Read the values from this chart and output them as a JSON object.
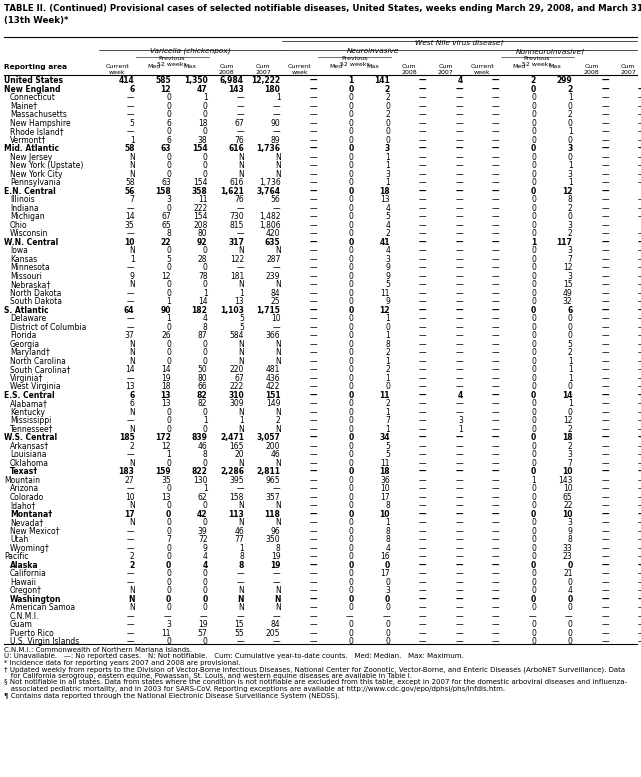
{
  "title": "TABLE II. (Continued) Provisional cases of selected notifiable diseases, United States, weeks ending March 29, 2008, and March 31, 2007\n(13th Week)*",
  "wnv_label": "West Nile virus disease†",
  "rows": [
    [
      "United States",
      "414",
      "585",
      "1,350",
      "6,984",
      "12,222",
      "—",
      "1",
      "141",
      "—",
      "4",
      "—",
      "2",
      "299",
      "—",
      "1"
    ],
    [
      "New England",
      "6",
      "12",
      "47",
      "143",
      "180",
      "—",
      "0",
      "2",
      "—",
      "—",
      "—",
      "0",
      "2",
      "—",
      "—"
    ],
    [
      "Connecticut",
      "—",
      "0",
      "1",
      "—",
      "1",
      "—",
      "0",
      "2",
      "—",
      "—",
      "—",
      "0",
      "1",
      "—",
      "—"
    ],
    [
      "Maine†",
      "—",
      "0",
      "0",
      "—",
      "—",
      "—",
      "0",
      "0",
      "—",
      "—",
      "—",
      "0",
      "0",
      "—",
      "—"
    ],
    [
      "Massachusetts",
      "—",
      "0",
      "0",
      "—",
      "—",
      "—",
      "0",
      "2",
      "—",
      "—",
      "—",
      "0",
      "2",
      "—",
      "—"
    ],
    [
      "New Hampshire",
      "5",
      "6",
      "18",
      "67",
      "90",
      "—",
      "0",
      "0",
      "—",
      "—",
      "—",
      "0",
      "0",
      "—",
      "—"
    ],
    [
      "Rhode Island†",
      "—",
      "0",
      "0",
      "—",
      "—",
      "—",
      "0",
      "0",
      "—",
      "—",
      "—",
      "0",
      "1",
      "—",
      "—"
    ],
    [
      "Vermont†",
      "1",
      "6",
      "38",
      "76",
      "89",
      "—",
      "0",
      "0",
      "—",
      "—",
      "—",
      "0",
      "0",
      "—",
      "—"
    ],
    [
      "Mid. Atlantic",
      "58",
      "63",
      "154",
      "616",
      "1,736",
      "—",
      "0",
      "3",
      "—",
      "—",
      "—",
      "0",
      "3",
      "—",
      "—"
    ],
    [
      "New Jersey",
      "N",
      "0",
      "0",
      "N",
      "N",
      "—",
      "0",
      "1",
      "—",
      "—",
      "—",
      "0",
      "0",
      "—",
      "—"
    ],
    [
      "New York (Upstate)",
      "N",
      "0",
      "0",
      "N",
      "N",
      "—",
      "0",
      "1",
      "—",
      "—",
      "—",
      "0",
      "1",
      "—",
      "—"
    ],
    [
      "New York City",
      "N",
      "0",
      "0",
      "N",
      "N",
      "—",
      "0",
      "3",
      "—",
      "—",
      "—",
      "0",
      "3",
      "—",
      "—"
    ],
    [
      "Pennsylvania",
      "58",
      "63",
      "154",
      "616",
      "1,736",
      "—",
      "0",
      "1",
      "—",
      "—",
      "—",
      "0",
      "1",
      "—",
      "—"
    ],
    [
      "E.N. Central",
      "56",
      "158",
      "358",
      "1,621",
      "3,764",
      "—",
      "0",
      "18",
      "—",
      "—",
      "—",
      "0",
      "12",
      "—",
      "1"
    ],
    [
      "Illinois",
      "7",
      "3",
      "11",
      "76",
      "56",
      "—",
      "0",
      "13",
      "—",
      "—",
      "—",
      "0",
      "8",
      "—",
      "—"
    ],
    [
      "Indiana",
      "—",
      "0",
      "222",
      "—",
      "—",
      "—",
      "0",
      "4",
      "—",
      "—",
      "—",
      "0",
      "2",
      "—",
      "—"
    ],
    [
      "Michigan",
      "14",
      "67",
      "154",
      "730",
      "1,482",
      "—",
      "0",
      "5",
      "—",
      "—",
      "—",
      "0",
      "0",
      "—",
      "—"
    ],
    [
      "Ohio",
      "35",
      "65",
      "208",
      "815",
      "1,806",
      "—",
      "0",
      "4",
      "—",
      "—",
      "—",
      "0",
      "3",
      "—",
      "1"
    ],
    [
      "Wisconsin",
      "—",
      "8",
      "80",
      "—",
      "420",
      "—",
      "0",
      "2",
      "—",
      "—",
      "—",
      "0",
      "2",
      "—",
      "—"
    ],
    [
      "W.N. Central",
      "10",
      "22",
      "92",
      "317",
      "635",
      "—",
      "0",
      "41",
      "—",
      "—",
      "—",
      "1",
      "117",
      "—",
      "—"
    ],
    [
      "Iowa",
      "N",
      "0",
      "0",
      "N",
      "N",
      "—",
      "0",
      "4",
      "—",
      "—",
      "—",
      "0",
      "3",
      "—",
      "—"
    ],
    [
      "Kansas",
      "1",
      "5",
      "28",
      "122",
      "287",
      "—",
      "0",
      "3",
      "—",
      "—",
      "—",
      "0",
      "7",
      "—",
      "—"
    ],
    [
      "Minnesota",
      "—",
      "0",
      "0",
      "—",
      "—",
      "—",
      "0",
      "9",
      "—",
      "—",
      "—",
      "0",
      "12",
      "—",
      "—"
    ],
    [
      "Missouri",
      "9",
      "12",
      "78",
      "181",
      "239",
      "—",
      "0",
      "9",
      "—",
      "—",
      "—",
      "0",
      "3",
      "—",
      "—"
    ],
    [
      "Nebraska†",
      "N",
      "0",
      "0",
      "N",
      "N",
      "—",
      "0",
      "5",
      "—",
      "—",
      "—",
      "0",
      "15",
      "—",
      "—"
    ],
    [
      "North Dakota",
      "—",
      "0",
      "1",
      "1",
      "84",
      "—",
      "0",
      "11",
      "—",
      "—",
      "—",
      "0",
      "49",
      "—",
      "—"
    ],
    [
      "South Dakota",
      "—",
      "1",
      "14",
      "13",
      "25",
      "—",
      "0",
      "9",
      "—",
      "—",
      "—",
      "0",
      "32",
      "—",
      "—"
    ],
    [
      "S. Atlantic",
      "64",
      "90",
      "182",
      "1,103",
      "1,715",
      "—",
      "0",
      "12",
      "—",
      "—",
      "—",
      "0",
      "6",
      "—",
      "—"
    ],
    [
      "Delaware",
      "—",
      "1",
      "4",
      "5",
      "10",
      "—",
      "0",
      "1",
      "—",
      "—",
      "—",
      "0",
      "0",
      "—",
      "—"
    ],
    [
      "District of Columbia",
      "—",
      "0",
      "8",
      "5",
      "—",
      "—",
      "0",
      "0",
      "—",
      "—",
      "—",
      "0",
      "0",
      "—",
      "—"
    ],
    [
      "Florida",
      "37",
      "26",
      "87",
      "584",
      "366",
      "—",
      "0",
      "1",
      "—",
      "—",
      "—",
      "0",
      "0",
      "—",
      "—"
    ],
    [
      "Georgia",
      "N",
      "0",
      "0",
      "N",
      "N",
      "—",
      "0",
      "8",
      "—",
      "—",
      "—",
      "0",
      "5",
      "—",
      "—"
    ],
    [
      "Maryland†",
      "N",
      "0",
      "0",
      "N",
      "N",
      "—",
      "0",
      "2",
      "—",
      "—",
      "—",
      "0",
      "2",
      "—",
      "—"
    ],
    [
      "North Carolina",
      "N",
      "0",
      "0",
      "N",
      "N",
      "—",
      "0",
      "1",
      "—",
      "—",
      "—",
      "0",
      "1",
      "—",
      "—"
    ],
    [
      "South Carolina†",
      "14",
      "14",
      "50",
      "220",
      "481",
      "—",
      "0",
      "2",
      "—",
      "—",
      "—",
      "0",
      "1",
      "—",
      "—"
    ],
    [
      "Virginia†",
      "—",
      "19",
      "80",
      "67",
      "436",
      "—",
      "0",
      "1",
      "—",
      "—",
      "—",
      "0",
      "1",
      "—",
      "—"
    ],
    [
      "West Virginia",
      "13",
      "18",
      "66",
      "222",
      "422",
      "—",
      "0",
      "0",
      "—",
      "—",
      "—",
      "0",
      "0",
      "—",
      "—"
    ],
    [
      "E.S. Central",
      "6",
      "13",
      "82",
      "310",
      "151",
      "—",
      "0",
      "11",
      "—",
      "4",
      "—",
      "0",
      "14",
      "—",
      "—"
    ],
    [
      "Alabama†",
      "6",
      "13",
      "82",
      "309",
      "149",
      "—",
      "0",
      "2",
      "—",
      "—",
      "—",
      "0",
      "1",
      "—",
      "—"
    ],
    [
      "Kentucky",
      "N",
      "0",
      "0",
      "N",
      "N",
      "—",
      "0",
      "1",
      "—",
      "—",
      "—",
      "0",
      "0",
      "—",
      "—"
    ],
    [
      "Mississippi",
      "—",
      "0",
      "1",
      "1",
      "2",
      "—",
      "0",
      "7",
      "—",
      "3",
      "—",
      "0",
      "12",
      "—",
      "—"
    ],
    [
      "Tennessee†",
      "N",
      "0",
      "0",
      "N",
      "N",
      "—",
      "0",
      "1",
      "—",
      "1",
      "—",
      "0",
      "2",
      "—",
      "—"
    ],
    [
      "W.S. Central",
      "185",
      "172",
      "839",
      "2,471",
      "3,057",
      "—",
      "0",
      "34",
      "—",
      "—",
      "—",
      "0",
      "18",
      "—",
      "—"
    ],
    [
      "Arkansas†",
      "2",
      "12",
      "46",
      "165",
      "200",
      "—",
      "0",
      "5",
      "—",
      "—",
      "—",
      "0",
      "2",
      "—",
      "—"
    ],
    [
      "Louisiana",
      "—",
      "1",
      "8",
      "20",
      "46",
      "—",
      "0",
      "5",
      "—",
      "—",
      "—",
      "0",
      "3",
      "—",
      "—"
    ],
    [
      "Oklahoma",
      "N",
      "0",
      "0",
      "N",
      "N",
      "—",
      "0",
      "11",
      "—",
      "—",
      "—",
      "0",
      "7",
      "—",
      "—"
    ],
    [
      "Texas†",
      "183",
      "159",
      "822",
      "2,286",
      "2,811",
      "—",
      "0",
      "18",
      "—",
      "—",
      "—",
      "0",
      "10",
      "—",
      "—"
    ],
    [
      "Mountain",
      "27",
      "35",
      "130",
      "395",
      "965",
      "—",
      "0",
      "36",
      "—",
      "—",
      "—",
      "1",
      "143",
      "—",
      "—"
    ],
    [
      "Arizona",
      "—",
      "0",
      "1",
      "—",
      "—",
      "—",
      "0",
      "10",
      "—",
      "—",
      "—",
      "0",
      "10",
      "—",
      "—"
    ],
    [
      "Colorado",
      "10",
      "13",
      "62",
      "158",
      "357",
      "—",
      "0",
      "17",
      "—",
      "—",
      "—",
      "0",
      "65",
      "—",
      "—"
    ],
    [
      "Idaho†",
      "N",
      "0",
      "0",
      "N",
      "N",
      "—",
      "0",
      "8",
      "—",
      "—",
      "—",
      "0",
      "22",
      "—",
      "—"
    ],
    [
      "Montana†",
      "17",
      "0",
      "42",
      "113",
      "118",
      "—",
      "0",
      "10",
      "—",
      "—",
      "—",
      "0",
      "10",
      "—",
      "—"
    ],
    [
      "Nevada†",
      "N",
      "0",
      "0",
      "N",
      "N",
      "—",
      "0",
      "1",
      "—",
      "—",
      "—",
      "0",
      "3",
      "—",
      "—"
    ],
    [
      "New Mexico†",
      "—",
      "0",
      "39",
      "46",
      "96",
      "—",
      "0",
      "8",
      "—",
      "—",
      "—",
      "0",
      "9",
      "—",
      "—"
    ],
    [
      "Utah",
      "—",
      "7",
      "72",
      "77",
      "350",
      "—",
      "0",
      "8",
      "—",
      "—",
      "—",
      "0",
      "8",
      "—",
      "—"
    ],
    [
      "Wyoming†",
      "—",
      "0",
      "9",
      "1",
      "8",
      "—",
      "0",
      "4",
      "—",
      "—",
      "—",
      "0",
      "33",
      "—",
      "—"
    ],
    [
      "Pacific",
      "2",
      "0",
      "4",
      "8",
      "19",
      "—",
      "0",
      "16",
      "—",
      "—",
      "—",
      "0",
      "23",
      "—",
      "—"
    ],
    [
      "Alaska",
      "2",
      "0",
      "4",
      "8",
      "19",
      "—",
      "0",
      "0",
      "—",
      "—",
      "—",
      "0",
      "0",
      "—",
      "—"
    ],
    [
      "California",
      "—",
      "0",
      "0",
      "—",
      "—",
      "—",
      "0",
      "17",
      "—",
      "—",
      "—",
      "0",
      "21",
      "—",
      "—"
    ],
    [
      "Hawaii",
      "—",
      "0",
      "0",
      "—",
      "—",
      "—",
      "0",
      "0",
      "—",
      "—",
      "—",
      "0",
      "0",
      "—",
      "—"
    ],
    [
      "Oregon†",
      "N",
      "0",
      "0",
      "N",
      "N",
      "—",
      "0",
      "3",
      "—",
      "—",
      "—",
      "0",
      "4",
      "—",
      "—"
    ],
    [
      "Washington",
      "N",
      "0",
      "0",
      "N",
      "N",
      "—",
      "0",
      "0",
      "—",
      "—",
      "—",
      "0",
      "0",
      "—",
      "—"
    ],
    [
      "American Samoa",
      "N",
      "0",
      "0",
      "N",
      "N",
      "—",
      "0",
      "0",
      "—",
      "—",
      "—",
      "0",
      "0",
      "—",
      "—"
    ],
    [
      "C.N.M.I.",
      "—",
      "—",
      "—",
      "—",
      "—",
      "—",
      "—",
      "—",
      "—",
      "—",
      "—",
      "—",
      "—",
      "—",
      "—"
    ],
    [
      "Guam",
      "—",
      "3",
      "19",
      "15",
      "84",
      "—",
      "0",
      "0",
      "—",
      "—",
      "—",
      "0",
      "0",
      "—",
      "—"
    ],
    [
      "Puerto Rico",
      "—",
      "11",
      "57",
      "55",
      "205",
      "—",
      "0",
      "0",
      "—",
      "—",
      "—",
      "0",
      "0",
      "—",
      "—"
    ],
    [
      "U.S. Virgin Islands",
      "—",
      "0",
      "0",
      "—",
      "—",
      "—",
      "0",
      "0",
      "—",
      "—",
      "—",
      "0",
      "0",
      "—",
      "—"
    ]
  ],
  "bold_rows": [
    0,
    1,
    8,
    13,
    19,
    27,
    37,
    42,
    46,
    51,
    57,
    61
  ],
  "footer_lines": [
    "C.N.M.I.: Commonwealth of Northern Mariana Islands.",
    "U: Unavailable.   —: No reported cases.   N: Not notifiable.   Cum: Cumulative year-to-date counts.   Med: Median.   Max: Maximum.",
    "* Incidence data for reporting years 2007 and 2008 are provisional.",
    "† Updated weekly from reports to the Division of Vector-Borne Infectious Diseases, National Center for Zoonotic, Vector-Borne, and Enteric Diseases (ArboNET Surveillance). Data",
    "   for California serogroup, eastern equine, Powassan, St. Louis, and western equine diseases are available in Table I.",
    "§ Not notifiable in all states. Data from states where the condition is not notifiable are excluded from this table, except in 2007 for the domestic arboviral diseases and influenza-",
    "   associated pediatric mortality, and in 2003 for SARS-CoV. Reporting exceptions are available at http://www.cdc.gov/epo/dphsi/phs/infdis.htm.",
    "¶ Contains data reported through the National Electronic Disease Surveillance System (NEDSS)."
  ],
  "sub_area_labels": [
    "Connecticut",
    "Maine",
    "Massachusetts",
    "New Hampshire",
    "Rhode Island",
    "Vermont",
    "New Jersey",
    "New York (Upstate)",
    "New York City",
    "Pennsylvania",
    "Illinois",
    "Indiana",
    "Michigan",
    "Ohio",
    "Wisconsin",
    "Iowa",
    "Kansas",
    "Minnesota",
    "Missouri",
    "Nebraska",
    "North Dakota",
    "South Dakota",
    "Delaware",
    "District of Columbia",
    "Florida",
    "Georgia",
    "Maryland",
    "North Carolina",
    "South Carolina",
    "Virginia",
    "West Virginia",
    "Alabama",
    "Kentucky",
    "Mississippi",
    "Tennessee",
    "Arkansas",
    "Louisiana",
    "Oklahoma",
    "Texas",
    "Arizona",
    "Colorado",
    "Idaho",
    "Montana",
    "Nevada",
    "New Mexico",
    "Utah",
    "Wyoming",
    "Alaska",
    "California",
    "Hawaii",
    "Oregon",
    "Washington",
    "American Samoa",
    "C.N.M.I.",
    "Guam",
    "Puerto Rico",
    "U.S. Virgin Islands"
  ]
}
